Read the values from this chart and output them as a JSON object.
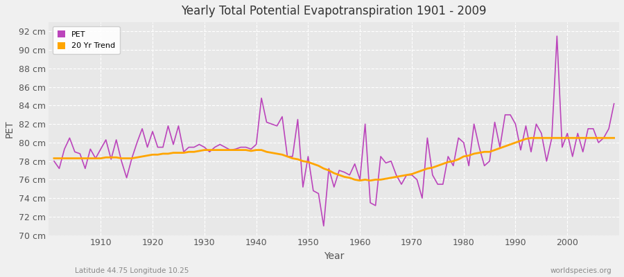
{
  "title": "Yearly Total Potential Evapotranspiration 1901 - 2009",
  "xlabel": "Year",
  "ylabel": "PET",
  "subtitle_left": "Latitude 44.75 Longitude 10.25",
  "subtitle_right": "worldspecies.org",
  "pet_color": "#BB44BB",
  "trend_color": "#FFA500",
  "background_color": "#F0F0F0",
  "plot_bg_color": "#E8E8E8",
  "grid_color": "#FFFFFF",
  "ylim": [
    70,
    93
  ],
  "yticks": [
    70,
    72,
    74,
    76,
    78,
    80,
    82,
    84,
    86,
    88,
    90,
    92
  ],
  "years": [
    1901,
    1902,
    1903,
    1904,
    1905,
    1906,
    1907,
    1908,
    1909,
    1910,
    1911,
    1912,
    1913,
    1914,
    1915,
    1916,
    1917,
    1918,
    1919,
    1920,
    1921,
    1922,
    1923,
    1924,
    1925,
    1926,
    1927,
    1928,
    1929,
    1930,
    1931,
    1932,
    1933,
    1934,
    1935,
    1936,
    1937,
    1938,
    1939,
    1940,
    1941,
    1942,
    1943,
    1944,
    1945,
    1946,
    1947,
    1948,
    1949,
    1950,
    1951,
    1952,
    1953,
    1954,
    1955,
    1956,
    1957,
    1958,
    1959,
    1960,
    1961,
    1962,
    1963,
    1964,
    1965,
    1966,
    1967,
    1968,
    1969,
    1970,
    1971,
    1972,
    1973,
    1974,
    1975,
    1976,
    1977,
    1978,
    1979,
    1980,
    1981,
    1982,
    1983,
    1984,
    1985,
    1986,
    1987,
    1988,
    1989,
    1990,
    1991,
    1992,
    1993,
    1994,
    1995,
    1996,
    1997,
    1998,
    1999,
    2000,
    2001,
    2002,
    2003,
    2004,
    2005,
    2006,
    2007,
    2008,
    2009
  ],
  "pet_values": [
    78.0,
    77.2,
    79.3,
    80.5,
    79.0,
    78.8,
    77.2,
    79.3,
    78.3,
    79.3,
    80.3,
    78.2,
    80.3,
    78.0,
    76.2,
    78.3,
    80.0,
    81.5,
    79.5,
    81.2,
    79.5,
    79.5,
    81.8,
    79.8,
    81.8,
    79.0,
    79.5,
    79.5,
    79.8,
    79.5,
    79.0,
    79.5,
    79.8,
    79.5,
    79.2,
    79.3,
    79.5,
    79.5,
    79.3,
    79.8,
    84.8,
    82.2,
    82.0,
    81.8,
    82.8,
    78.5,
    78.5,
    82.5,
    75.2,
    78.5,
    74.8,
    74.5,
    71.0,
    77.2,
    75.2,
    77.0,
    76.8,
    76.5,
    77.7,
    76.0,
    82.0,
    73.5,
    73.2,
    78.5,
    77.8,
    78.0,
    76.5,
    75.5,
    76.5,
    76.5,
    76.0,
    74.0,
    80.5,
    76.5,
    75.5,
    75.5,
    78.5,
    77.5,
    80.5,
    80.0,
    77.5,
    82.0,
    79.5,
    77.5,
    78.0,
    82.2,
    79.5,
    83.0,
    83.0,
    82.0,
    79.2,
    81.8,
    79.0,
    82.0,
    81.0,
    78.0,
    80.5,
    91.5,
    79.5,
    81.0,
    78.5,
    81.0,
    79.0,
    81.5,
    81.5,
    80.0,
    80.5,
    81.5,
    84.2
  ],
  "trend_values": [
    78.3,
    78.3,
    78.3,
    78.3,
    78.3,
    78.3,
    78.3,
    78.3,
    78.3,
    78.3,
    78.4,
    78.4,
    78.4,
    78.3,
    78.3,
    78.3,
    78.4,
    78.5,
    78.6,
    78.7,
    78.7,
    78.8,
    78.8,
    78.9,
    78.9,
    78.9,
    79.0,
    79.0,
    79.1,
    79.2,
    79.2,
    79.2,
    79.2,
    79.2,
    79.2,
    79.2,
    79.2,
    79.2,
    79.1,
    79.2,
    79.2,
    79.0,
    78.9,
    78.8,
    78.7,
    78.5,
    78.3,
    78.2,
    78.0,
    77.9,
    77.7,
    77.5,
    77.2,
    77.0,
    76.7,
    76.5,
    76.3,
    76.2,
    76.0,
    75.9,
    76.0,
    75.9,
    76.0,
    76.0,
    76.1,
    76.2,
    76.3,
    76.4,
    76.5,
    76.6,
    76.8,
    77.0,
    77.2,
    77.3,
    77.5,
    77.7,
    77.9,
    78.0,
    78.2,
    78.5,
    78.6,
    78.8,
    78.9,
    79.0,
    79.0,
    79.2,
    79.4,
    79.6,
    79.8,
    80.0,
    80.2,
    80.4,
    80.5,
    80.5,
    80.5,
    80.5,
    80.5,
    80.5,
    80.5,
    80.5,
    80.5,
    80.5,
    80.5,
    80.5,
    80.5,
    80.5,
    80.5,
    80.5,
    80.5
  ],
  "legend_pet": "PET",
  "legend_trend": "20 Yr Trend",
  "pet_linewidth": 1.2,
  "trend_linewidth": 2.0
}
